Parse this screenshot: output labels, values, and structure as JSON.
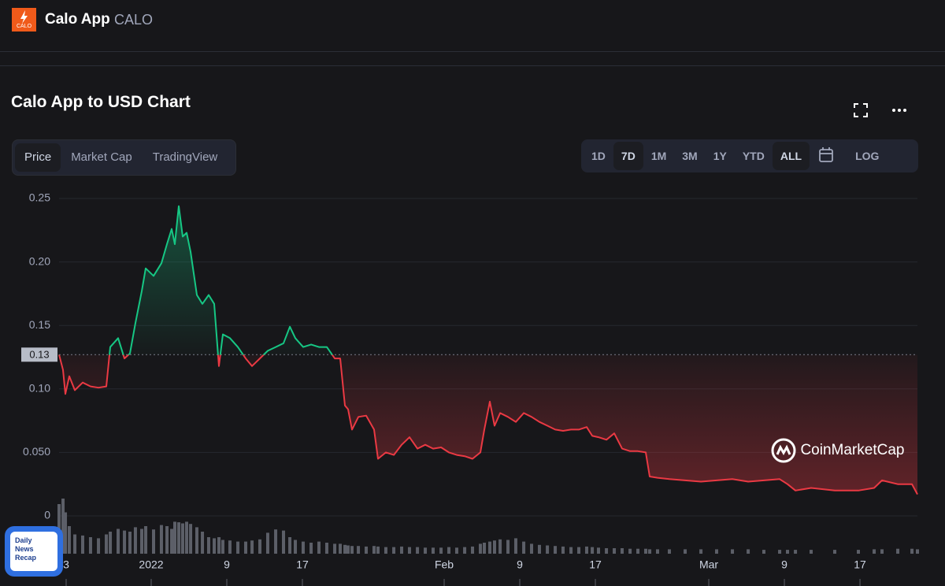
{
  "header": {
    "name": "Calo App",
    "symbol": "CALO",
    "logo_text": "CALO"
  },
  "title": "Calo App to USD Chart",
  "tabs": [
    "Price",
    "Market Cap",
    "TradingView"
  ],
  "active_tab": 0,
  "ranges": [
    "1D",
    "7D",
    "1M",
    "3M",
    "1Y",
    "YTD",
    "ALL"
  ],
  "active_ranges": [
    1,
    6
  ],
  "log_button": "LOG",
  "watermark": "CoinMarketCap",
  "badge": [
    "Daily",
    "News",
    "Recap"
  ],
  "chart_data": {
    "type": "line",
    "x": [
      -9.75,
      -9.33,
      -9.08,
      -8.67,
      -8.08,
      -7.25,
      -6.42,
      -5.58,
      -4.75,
      -4.33,
      -3.5,
      -2.83,
      -2.25,
      -1.67,
      -1,
      -0.58,
      0.25,
      1.08,
      1.67,
      2.17,
      2.5,
      2.92,
      3.33,
      3.75,
      4.17,
      4.83,
      5.42,
      6.08,
      6.67,
      7.17,
      7.58,
      8.33,
      9.17,
      10,
      10.67,
      11.5,
      12.33,
      13.17,
      14,
      14.67,
      15.25,
      16.08,
      16.92,
      17.75,
      18.58,
      19.42,
      20,
      20.5,
      20.83,
      21.25,
      21.92,
      22.75,
      23.58,
      24,
      24.83,
      25.67,
      26.5,
      27.33,
      28.17,
      29,
      29.83,
      30.67,
      31.5,
      32.33,
      33.17,
      34,
      34.83,
      35.25,
      35.83,
      36.33,
      36.92,
      37.75,
      38.58,
      39.42,
      40.25,
      41.08,
      41.92,
      42.75,
      43.58,
      44.42,
      45.25,
      46.08,
      46.67,
      47.33,
      48.17,
      49,
      49.83,
      50.67,
      51.5,
      52.33,
      52.75,
      53.58,
      54.83,
      56.5,
      58.17,
      59.83,
      61.5,
      63.17,
      64.83,
      66.5,
      67.33,
      68.17,
      69.83,
      72.33,
      74.83,
      76.5,
      77.33,
      79,
      80.5,
      81.08
    ],
    "series": [
      {
        "values": [
          0.127,
          0.115,
          0.096,
          0.11,
          0.099,
          0.105,
          0.102,
          0.101,
          0.102,
          0.133,
          0.14,
          0.124,
          0.128,
          0.152,
          0.177,
          0.195,
          0.189,
          0.199,
          0.214,
          0.226,
          0.214,
          0.244,
          0.22,
          0.223,
          0.208,
          0.174,
          0.167,
          0.174,
          0.167,
          0.118,
          0.143,
          0.14,
          0.133,
          0.124,
          0.118,
          0.124,
          0.13,
          0.133,
          0.136,
          0.149,
          0.14,
          0.133,
          0.135,
          0.133,
          0.133,
          0.124,
          0.124,
          0.087,
          0.084,
          0.068,
          0.078,
          0.079,
          0.068,
          0.045,
          0.05,
          0.048,
          0.056,
          0.062,
          0.053,
          0.056,
          0.053,
          0.054,
          0.05,
          0.048,
          0.047,
          0.045,
          0.05,
          0.068,
          0.09,
          0.071,
          0.081,
          0.078,
          0.074,
          0.081,
          0.078,
          0.074,
          0.071,
          0.068,
          0.067,
          0.068,
          0.068,
          0.07,
          0.063,
          0.062,
          0.06,
          0.065,
          0.053,
          0.051,
          0.051,
          0.05,
          0.031,
          0.03,
          0.029,
          0.028,
          0.027,
          0.028,
          0.029,
          0.027,
          0.028,
          0.029,
          0.025,
          0.02,
          0.022,
          0.02,
          0.02,
          0.022,
          0.028,
          0.025,
          0.025,
          0.017
        ]
      },
      {
        "type": "bar",
        "axis": "y2",
        "color": "#5c5f68",
        "values": [
          90,
          100,
          75,
          50,
          35,
          33,
          30,
          28,
          35,
          40,
          45,
          42,
          40,
          48,
          45,
          50,
          44,
          52,
          50,
          45,
          58,
          57,
          55,
          58,
          54,
          48,
          40,
          30,
          28,
          30,
          25,
          24,
          22,
          22,
          24,
          26,
          38,
          44,
          42,
          30,
          25,
          22,
          20,
          22,
          20,
          18,
          18,
          16,
          15,
          14,
          14,
          13,
          14,
          13,
          12,
          12,
          13,
          12,
          12,
          11,
          11,
          11,
          12,
          11,
          12,
          13,
          18,
          20,
          22,
          24,
          26,
          25,
          28,
          22,
          18,
          16,
          15,
          14,
          13,
          12,
          12,
          13,
          12,
          11,
          10,
          10,
          10,
          9,
          9,
          9,
          8,
          8,
          8,
          8,
          8,
          8,
          8,
          8,
          7,
          7,
          7,
          7,
          7,
          7,
          7,
          8,
          8,
          9,
          9,
          8
        ]
      }
    ],
    "up_color": "#16c784",
    "down_color": "#ea3943",
    "price_label": {
      "value": 0.127,
      "label": "0.13"
    },
    "xlim": [
      -9.75,
      81.08
    ],
    "xticks": [
      {
        "value": -9,
        "label": "3"
      },
      {
        "value": 0,
        "label": "2022"
      },
      {
        "value": 8,
        "label": "9"
      },
      {
        "value": 16,
        "label": "17"
      },
      {
        "value": 31,
        "label": "Feb"
      },
      {
        "value": 39,
        "label": "9"
      },
      {
        "value": 47,
        "label": "17"
      },
      {
        "value": 59,
        "label": "Mar"
      },
      {
        "value": 67,
        "label": "9"
      },
      {
        "value": 75,
        "label": "17"
      }
    ],
    "ylim": [
      0,
      0.25
    ],
    "yticks": [
      0,
      {
        "value": 0.05,
        "label": "0.050"
      },
      {
        "value": 0.1,
        "label": "0.10"
      },
      0.15,
      {
        "value": 0.2,
        "label": "0.20"
      },
      0.25
    ],
    "y2lim": [
      0,
      100
    ],
    "grid": true
  }
}
